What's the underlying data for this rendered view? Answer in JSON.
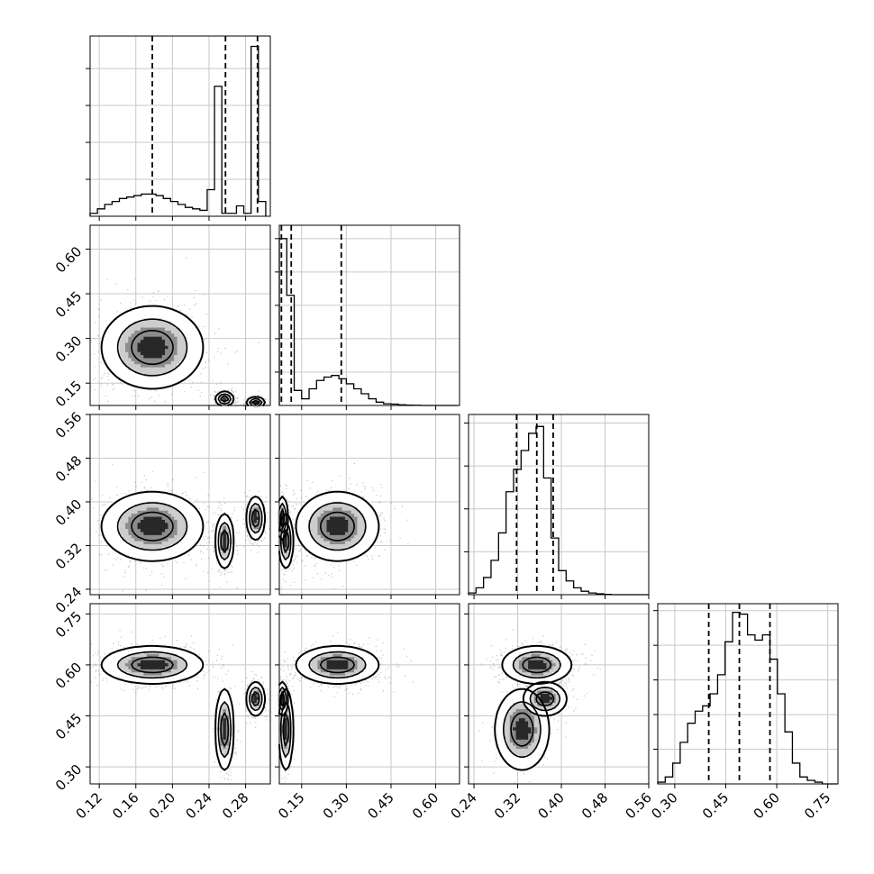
{
  "chart_data": {
    "type": "corner",
    "title": "",
    "grid": true,
    "parameters": [
      {
        "ticks": [
          0.12,
          0.16,
          0.2,
          0.24,
          0.28
        ],
        "tick_labels": [
          "0.12",
          "0.16",
          "0.20",
          "0.24",
          "0.28"
        ],
        "range": [
          0.11,
          0.307
        ],
        "quantiles": [
          0.178,
          0.258,
          0.293
        ]
      },
      {
        "ticks": [
          0.15,
          0.3,
          0.45,
          0.6
        ],
        "tick_labels": [
          "0.15",
          "0.30",
          "0.45",
          "0.60"
        ],
        "range": [
          0.075,
          0.68
        ],
        "quantiles": [
          0.082,
          0.115,
          0.283
        ]
      },
      {
        "ticks": [
          0.24,
          0.32,
          0.4,
          0.48,
          0.56
        ],
        "tick_labels": [
          "0.24",
          "0.32",
          "0.40",
          "0.48",
          "0.56"
        ],
        "range": [
          0.23,
          0.56
        ],
        "quantiles": [
          0.318,
          0.355,
          0.385
        ]
      },
      {
        "ticks": [
          0.3,
          0.45,
          0.6,
          0.75
        ],
        "tick_labels": [
          "0.30",
          "0.45",
          "0.60",
          "0.75"
        ],
        "range": [
          0.25,
          0.78
        ],
        "quantiles": [
          0.4,
          0.49,
          0.58
        ]
      }
    ],
    "histograms": [
      {
        "param": 0,
        "bin_edges": [
          0.11,
          0.118,
          0.126,
          0.134,
          0.142,
          0.15,
          0.158,
          0.166,
          0.174,
          0.182,
          0.19,
          0.198,
          0.206,
          0.214,
          0.222,
          0.23,
          0.238,
          0.246,
          0.254,
          0.262,
          0.27,
          0.278,
          0.286,
          0.294,
          0.302
        ],
        "counts": [
          0.02,
          0.05,
          0.08,
          0.1,
          0.12,
          0.13,
          0.14,
          0.15,
          0.15,
          0.14,
          0.12,
          0.1,
          0.08,
          0.06,
          0.05,
          0.04,
          0.18,
          0.88,
          0.02,
          0.02,
          0.07,
          0.02,
          1.15,
          0.1
        ],
        "ylim": [
          0,
          1.22
        ],
        "yticks": [
          0.25,
          0.5,
          0.75,
          1.0
        ]
      },
      {
        "param": 1,
        "bin_edges": [
          0.075,
          0.1,
          0.125,
          0.15,
          0.175,
          0.2,
          0.225,
          0.25,
          0.275,
          0.3,
          0.325,
          0.35,
          0.375,
          0.4,
          0.425,
          0.45,
          0.475,
          0.5,
          0.525,
          0.55,
          0.575,
          0.6,
          0.625,
          0.65,
          0.675
        ],
        "counts": [
          1.0,
          0.66,
          0.09,
          0.04,
          0.1,
          0.15,
          0.17,
          0.18,
          0.16,
          0.13,
          0.1,
          0.07,
          0.04,
          0.02,
          0.01,
          0.008,
          0.004,
          0.002,
          0.001,
          0.0,
          0.0,
          0.0,
          0.0,
          0.0
        ],
        "ylim": [
          0,
          1.08
        ],
        "yticks": [
          0.2,
          0.4,
          0.6,
          0.8,
          1.0
        ]
      },
      {
        "param": 2,
        "bin_edges": [
          0.23,
          0.2437,
          0.2575,
          0.2712,
          0.285,
          0.2987,
          0.3125,
          0.3262,
          0.34,
          0.3537,
          0.3675,
          0.3812,
          0.395,
          0.4087,
          0.4225,
          0.4362,
          0.45,
          0.4637,
          0.4775,
          0.4912,
          0.505,
          0.5187,
          0.5325,
          0.5462,
          0.56
        ],
        "counts": [
          0.01,
          0.04,
          0.1,
          0.2,
          0.36,
          0.6,
          0.73,
          0.84,
          0.94,
          0.98,
          0.68,
          0.33,
          0.14,
          0.08,
          0.04,
          0.02,
          0.01,
          0.005,
          0.002,
          0.0,
          0.0,
          0.0,
          0.0,
          0.0
        ],
        "ylim": [
          0,
          1.05
        ],
        "yticks": [
          0.25,
          0.5,
          0.75,
          1.0
        ]
      },
      {
        "param": 3,
        "bin_edges": [
          0.25,
          0.272,
          0.294,
          0.316,
          0.338,
          0.36,
          0.382,
          0.404,
          0.426,
          0.448,
          0.47,
          0.492,
          0.514,
          0.536,
          0.558,
          0.58,
          0.602,
          0.624,
          0.646,
          0.668,
          0.69,
          0.712,
          0.734,
          0.756,
          0.778
        ],
        "counts": [
          0.01,
          0.04,
          0.12,
          0.24,
          0.35,
          0.42,
          0.45,
          0.52,
          0.63,
          0.82,
          0.99,
          0.98,
          0.86,
          0.83,
          0.86,
          0.72,
          0.52,
          0.3,
          0.12,
          0.04,
          0.02,
          0.01,
          0.0,
          0.0
        ],
        "ylim": [
          0,
          1.04
        ],
        "yticks": [
          0.2,
          0.4,
          0.6,
          0.8,
          1.0
        ]
      }
    ],
    "density_clusters": [
      {
        "mean": [
          0.178,
          0.27,
          0.355,
          0.6
        ],
        "sd": [
          0.028,
          0.07,
          0.032,
          0.028
        ],
        "weight": 0.55
      },
      {
        "mean": [
          0.257,
          0.097,
          0.328,
          0.41
        ],
        "sd": [
          0.005,
          0.012,
          0.025,
          0.06
        ],
        "weight": 0.22
      },
      {
        "mean": [
          0.291,
          0.085,
          0.37,
          0.5
        ],
        "sd": [
          0.005,
          0.009,
          0.02,
          0.025
        ],
        "weight": 0.23
      }
    ]
  }
}
